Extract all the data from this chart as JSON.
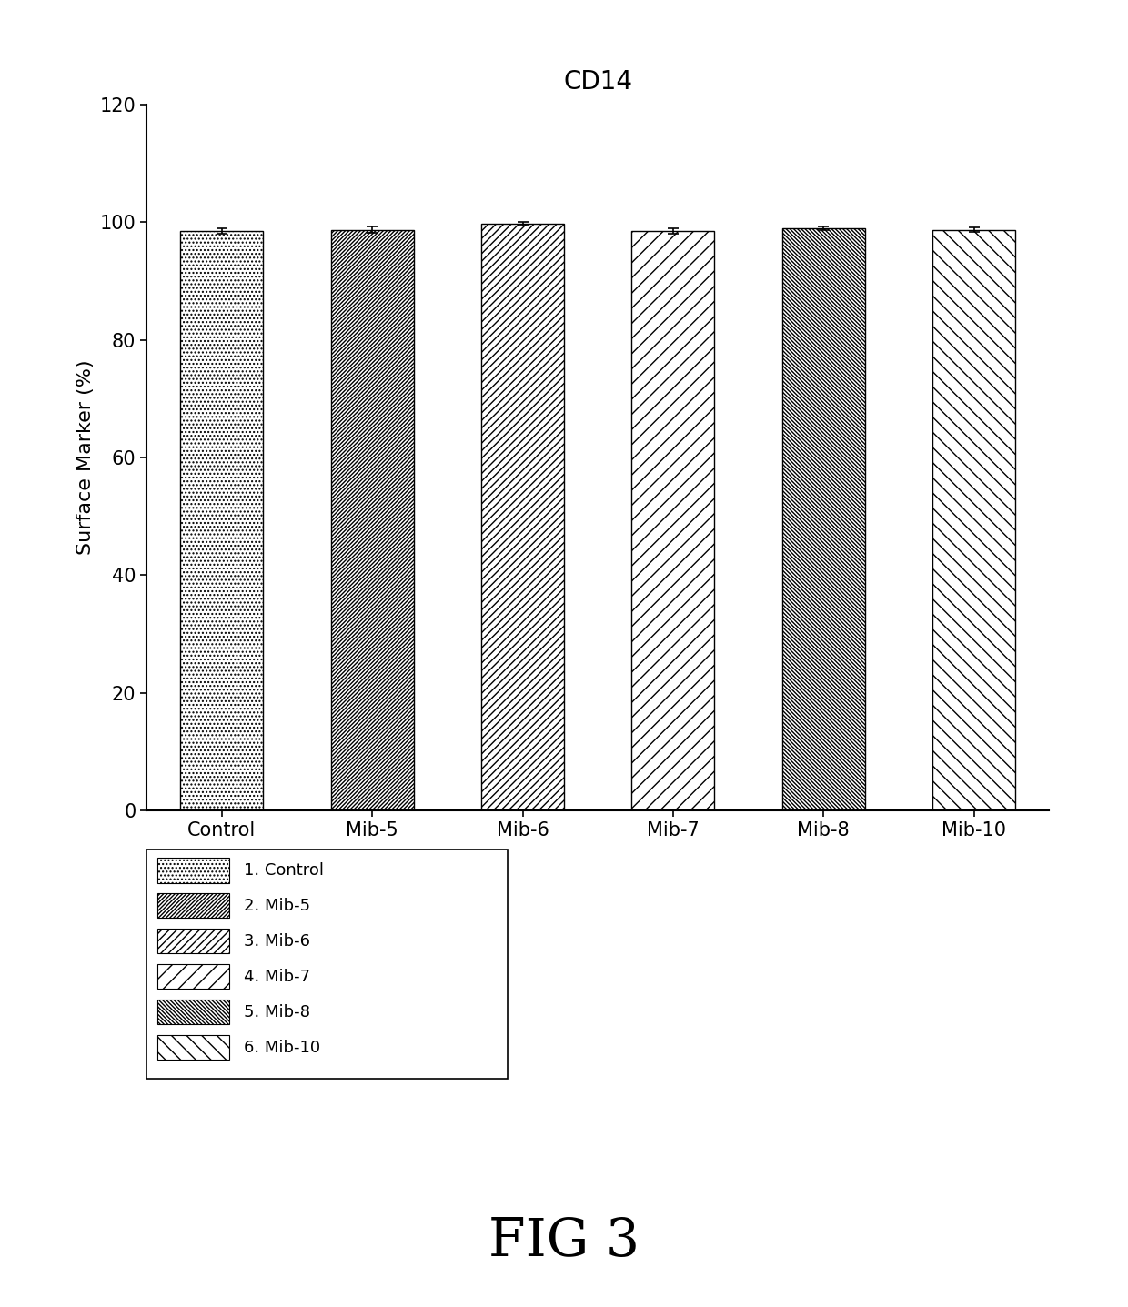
{
  "title": "CD14",
  "ylabel": "Surface Marker (%)",
  "categories": [
    "Control",
    "Mib-5",
    "Mib-6",
    "Mib-7",
    "Mib-8",
    "Mib-10"
  ],
  "values": [
    98.5,
    98.7,
    99.8,
    98.5,
    99.0,
    98.7
  ],
  "errors": [
    0.4,
    0.5,
    0.3,
    0.4,
    0.3,
    0.4
  ],
  "ylim": [
    0,
    120
  ],
  "yticks": [
    0,
    20,
    40,
    60,
    80,
    100,
    120
  ],
  "legend_labels": [
    "1. Control",
    "2. Mib-5",
    "3. Mib-6",
    "4. Mib-7",
    "5. Mib-8",
    "6. Mib-10"
  ],
  "fig_label": "FIG 3",
  "background_color": "#ffffff",
  "bar_color": "white",
  "bar_edge_color": "black",
  "figsize": [
    12.4,
    14.37
  ],
  "dpi": 100
}
